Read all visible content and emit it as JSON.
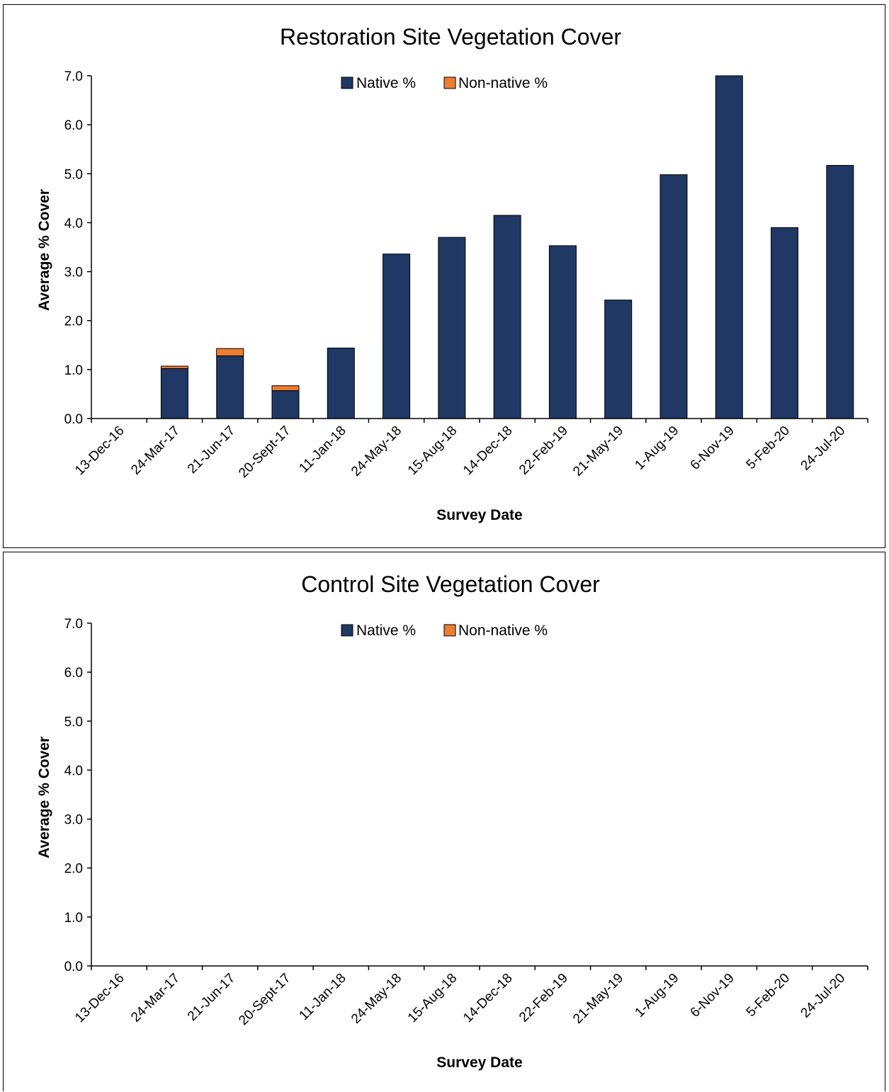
{
  "chart_data": [
    {
      "type": "bar",
      "stacked": true,
      "title": "Restoration Site Vegetation Cover",
      "xlabel": "Survey Date",
      "ylabel": "Average % Cover",
      "ylim": [
        0,
        7
      ],
      "yticks": [
        "0.0",
        "1.0",
        "2.0",
        "3.0",
        "4.0",
        "5.0",
        "6.0",
        "7.0"
      ],
      "grid": false,
      "legend_position": "top-center",
      "categories": [
        "13-Dec-16",
        "24-Mar-17",
        "21-Jun-17",
        "20-Sept-17",
        "11-Jan-18",
        "24-May-18",
        "15-Aug-18",
        "14-Dec-18",
        "22-Feb-19",
        "21-May-19",
        "1-Aug-19",
        "6-Nov-19",
        "5-Feb-20",
        "24-Jul-20"
      ],
      "series": [
        {
          "name": "Native %",
          "color": "#1f3864",
          "values": [
            0,
            1.02,
            1.28,
            0.57,
            1.44,
            3.36,
            3.7,
            4.15,
            3.53,
            2.42,
            4.98,
            7.0,
            3.9,
            5.17
          ]
        },
        {
          "name": "Non-native %",
          "color": "#ed7d31",
          "values": [
            0,
            0.05,
            0.15,
            0.1,
            0,
            0,
            0,
            0,
            0,
            0,
            0,
            0,
            0,
            0
          ]
        }
      ]
    },
    {
      "type": "bar",
      "stacked": true,
      "title": "Control Site Vegetation Cover",
      "xlabel": "Survey Date",
      "ylabel": "Average % Cover",
      "ylim": [
        0,
        7
      ],
      "yticks": [
        "0.0",
        "1.0",
        "2.0",
        "3.0",
        "4.0",
        "5.0",
        "6.0",
        "7.0"
      ],
      "grid": false,
      "legend_position": "top-center",
      "categories": [
        "13-Dec-16",
        "24-Mar-17",
        "21-Jun-17",
        "20-Sept-17",
        "11-Jan-18",
        "24-May-18",
        "15-Aug-18",
        "14-Dec-18",
        "22-Feb-19",
        "21-May-19",
        "1-Aug-19",
        "6-Nov-19",
        "5-Feb-20",
        "24-Jul-20"
      ],
      "series": [
        {
          "name": "Native %",
          "color": "#1f3864",
          "values": [
            0,
            0,
            0,
            0,
            0,
            0,
            0,
            0,
            0,
            0,
            0,
            0,
            0,
            0
          ]
        },
        {
          "name": "Non-native %",
          "color": "#ed7d31",
          "values": [
            0,
            0,
            0,
            0,
            0,
            0,
            0,
            0,
            0,
            0,
            0,
            0,
            0,
            0
          ]
        }
      ]
    }
  ]
}
